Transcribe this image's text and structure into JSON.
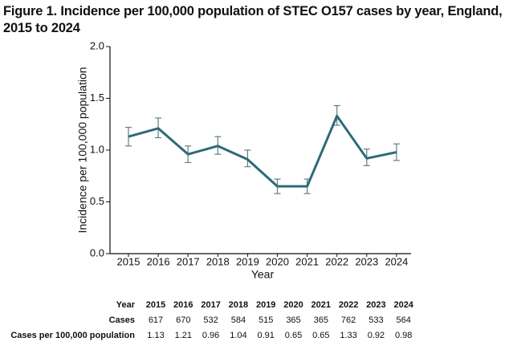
{
  "chart_data": {
    "type": "line",
    "title": "Figure 1. Incidence per 100,000 population of STEC O157 cases by year, England, 2015 to 2024",
    "x_label": "Year",
    "y_label": "Incidence per 100,000 population",
    "categories": [
      "2015",
      "2016",
      "2017",
      "2018",
      "2019",
      "2020",
      "2021",
      "2022",
      "2023",
      "2024"
    ],
    "values": [
      1.13,
      1.21,
      0.96,
      1.04,
      0.91,
      0.65,
      0.65,
      1.33,
      0.92,
      0.98
    ],
    "lower": [
      1.04,
      1.12,
      0.88,
      0.96,
      0.84,
      0.58,
      0.58,
      1.24,
      0.85,
      0.9
    ],
    "upper": [
      1.22,
      1.31,
      1.04,
      1.13,
      1.0,
      0.72,
      0.72,
      1.43,
      1.01,
      1.06
    ],
    "color": "#2d6a78",
    "error_color": "#5f7f86",
    "ylim": [
      0,
      2
    ],
    "yticks": [
      {
        "value": 0,
        "label": "0.0"
      },
      {
        "value": 0.5,
        "label": "0.5"
      },
      {
        "value": 1,
        "label": "1.0"
      },
      {
        "value": 1.5,
        "label": "1.5"
      },
      {
        "value": 2,
        "label": "2.0"
      }
    ],
    "table": {
      "row_labels": [
        "Year",
        "Cases",
        "Cases per 100,000 population"
      ],
      "cases": [
        617,
        670,
        532,
        584,
        515,
        365,
        365,
        762,
        533,
        564
      ]
    }
  }
}
